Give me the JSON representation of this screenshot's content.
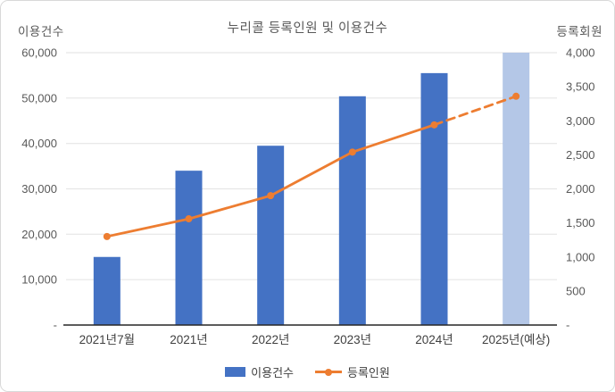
{
  "title": "누리콜 등록인원 및 이용건수",
  "legend": {
    "items": [
      {
        "label": "이용건수",
        "type": "bar",
        "color": "#4472C4"
      },
      {
        "label": "등록인원",
        "type": "line",
        "color": "#ED7D31"
      }
    ]
  },
  "colors": {
    "bar": "#4472C4",
    "bar_projected": "#B4C7E7",
    "line": "#ED7D31",
    "gridline": "#E6E6E6",
    "axis_line": "#262626",
    "tick_text": "#595959",
    "category_text": "#404040",
    "frame_border": "#D9D9D9",
    "background": "#FFFFFF"
  },
  "chart_data": {
    "type": "bar",
    "subtype": "combo-bar-line-dual-axis",
    "title": "누리콜 등록인원 및 이용건수",
    "categories": [
      "2021년7월",
      "2021년",
      "2022년",
      "2023년",
      "2024년",
      "2025년(예상)"
    ],
    "series": [
      {
        "name": "이용건수",
        "type": "bar",
        "axis": "left",
        "values": [
          15000,
          34000,
          39500,
          50400,
          55500,
          60000
        ],
        "point_colors": [
          "#4472C4",
          "#4472C4",
          "#4472C4",
          "#4472C4",
          "#4472C4",
          "#B4C7E7"
        ]
      },
      {
        "name": "등록인원",
        "type": "line",
        "axis": "right",
        "values": [
          1300,
          1560,
          1900,
          2540,
          2940,
          3360
        ],
        "color": "#ED7D31",
        "markers": true,
        "dash_start_index": 4
      }
    ],
    "left_axis": {
      "title": "이용건수",
      "min": 0,
      "max": 60000,
      "tick_interval": 10000,
      "tick_labels": [
        "-",
        "10,000",
        "20,000",
        "30,000",
        "40,000",
        "50,000",
        "60,000"
      ]
    },
    "right_axis": {
      "title": "등록회원",
      "min": 0,
      "max": 4000,
      "tick_interval": 500,
      "tick_labels": [
        "-",
        "500",
        "1,000",
        "1,500",
        "2,000",
        "2,500",
        "3,000",
        "3,500",
        "4,000"
      ]
    },
    "grid": "horizontal gridlines at left-axis ticks only",
    "legend_position": "bottom"
  }
}
